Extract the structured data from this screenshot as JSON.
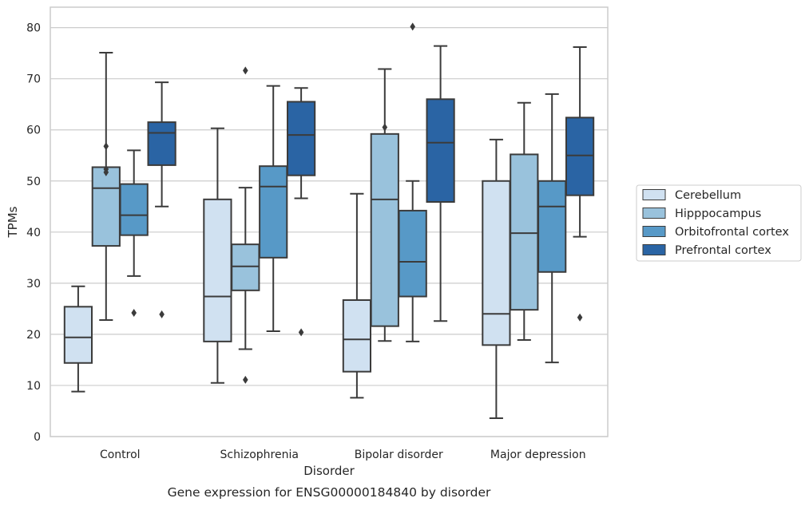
{
  "chart_data": {
    "type": "boxplot",
    "title": "Gene expression for ENSG00000184840 by disorder",
    "xlabel": "Disorder",
    "ylabel": "TPMs",
    "ylim": [
      0,
      84
    ],
    "yticks": [
      0,
      10,
      20,
      30,
      40,
      50,
      60,
      70,
      80
    ],
    "grid": "horizontal",
    "legend_position": "right",
    "categories": [
      "Control",
      "Schizophrenia",
      "Bipolar disorder",
      "Major depression"
    ],
    "series": [
      {
        "name": "Cerebellum",
        "color": "#d0e1f1",
        "boxes": [
          {
            "whislo": 8.8,
            "q1": 14.4,
            "med": 19.4,
            "q3": 25.4,
            "whishi": 29.4,
            "fliers": []
          },
          {
            "whislo": 10.5,
            "q1": 18.6,
            "med": 27.4,
            "q3": 46.4,
            "whishi": 60.3,
            "fliers": []
          },
          {
            "whislo": 7.6,
            "q1": 12.7,
            "med": 19.0,
            "q3": 26.7,
            "whishi": 47.5,
            "fliers": []
          },
          {
            "whislo": 3.6,
            "q1": 17.9,
            "med": 24.0,
            "q3": 50.0,
            "whishi": 58.1,
            "fliers": []
          }
        ]
      },
      {
        "name": "Hipppocampus",
        "color": "#99c2dc",
        "boxes": [
          {
            "whislo": 22.8,
            "q1": 37.3,
            "med": 48.6,
            "q3": 52.7,
            "whishi": 75.1,
            "fliers": [
              51.7,
              52.3,
              56.8
            ]
          },
          {
            "whislo": 17.1,
            "q1": 28.6,
            "med": 33.3,
            "q3": 37.6,
            "whishi": 48.7,
            "fliers": [
              11.1,
              71.6
            ]
          },
          {
            "whislo": 18.7,
            "q1": 21.6,
            "med": 46.4,
            "q3": 59.2,
            "whishi": 71.9,
            "fliers": [
              60.5
            ]
          },
          {
            "whislo": 18.9,
            "q1": 24.8,
            "med": 39.8,
            "q3": 55.2,
            "whishi": 65.3,
            "fliers": []
          }
        ]
      },
      {
        "name": "Orbitofrontal cortex",
        "color": "#5799c7",
        "boxes": [
          {
            "whislo": 31.4,
            "q1": 39.4,
            "med": 43.3,
            "q3": 49.4,
            "whishi": 56.0,
            "fliers": [
              24.2
            ]
          },
          {
            "whislo": 20.6,
            "q1": 35.0,
            "med": 48.9,
            "q3": 52.9,
            "whishi": 68.6,
            "fliers": []
          },
          {
            "whislo": 18.6,
            "q1": 27.4,
            "med": 34.2,
            "q3": 44.2,
            "whishi": 50.0,
            "fliers": [
              80.2
            ]
          },
          {
            "whislo": 14.5,
            "q1": 32.2,
            "med": 45.0,
            "q3": 50.0,
            "whishi": 67.0,
            "fliers": []
          }
        ]
      },
      {
        "name": "Prefrontal cortex",
        "color": "#2a64a4",
        "boxes": [
          {
            "whislo": 45.0,
            "q1": 53.1,
            "med": 59.4,
            "q3": 61.5,
            "whishi": 69.3,
            "fliers": [
              23.9
            ]
          },
          {
            "whislo": 46.6,
            "q1": 51.1,
            "med": 59.0,
            "q3": 65.5,
            "whishi": 68.2,
            "fliers": [
              20.4
            ]
          },
          {
            "whislo": 22.6,
            "q1": 45.9,
            "med": 57.5,
            "q3": 66.0,
            "whishi": 76.4,
            "fliers": []
          },
          {
            "whislo": 39.1,
            "q1": 47.2,
            "med": 55.0,
            "q3": 62.4,
            "whishi": 76.2,
            "fliers": [
              23.3
            ]
          }
        ]
      }
    ]
  }
}
